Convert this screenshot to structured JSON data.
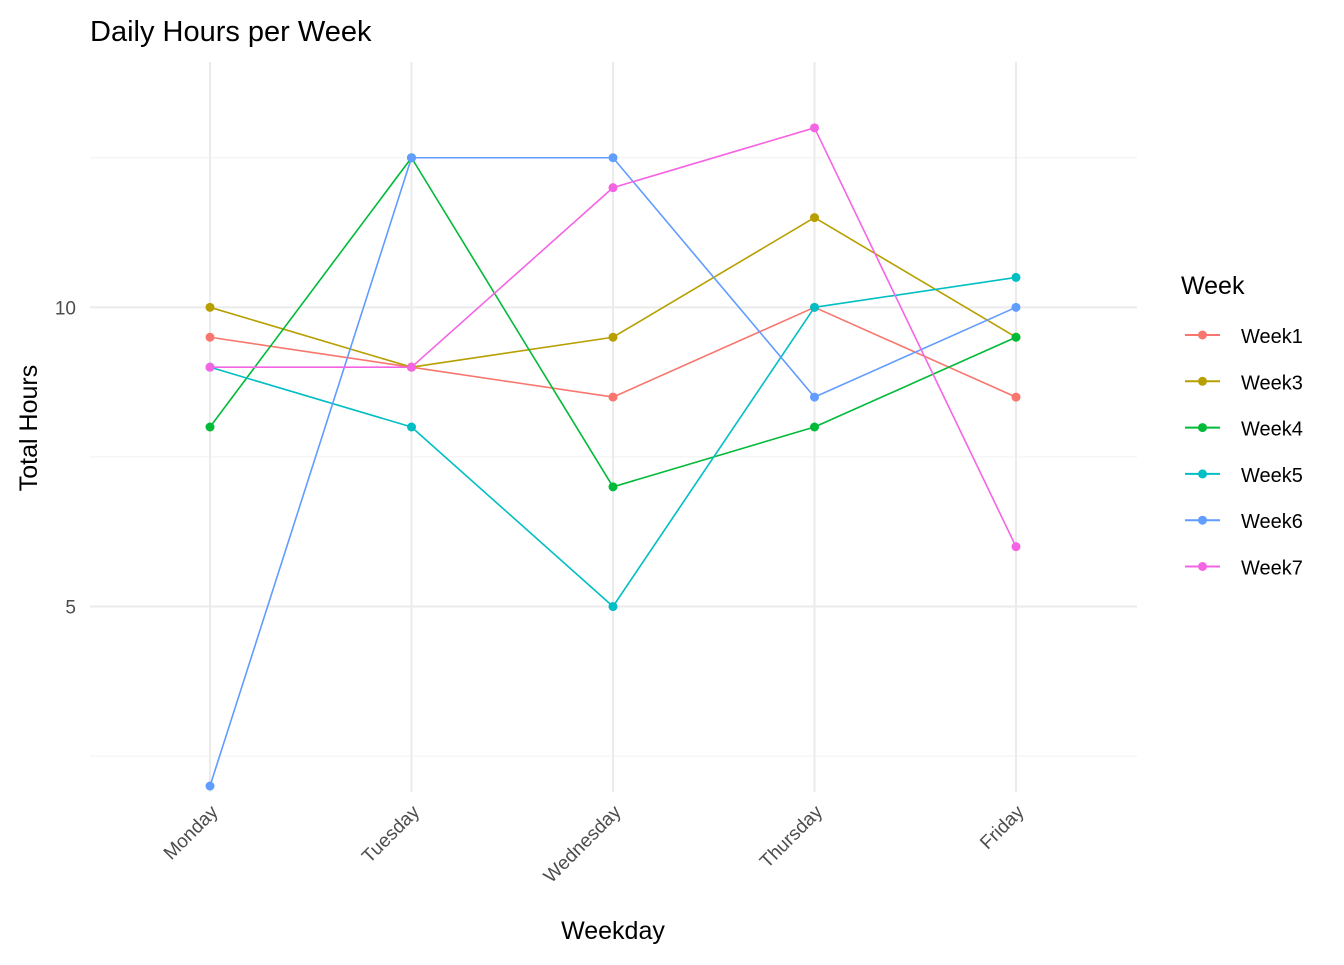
{
  "chart_data": {
    "type": "line",
    "title": "Daily Hours per Week",
    "xlabel": "Weekday",
    "ylabel": "Total Hours",
    "categories": [
      "Monday",
      "Tuesday",
      "Wednesday",
      "Thursday",
      "Friday"
    ],
    "ylim": [
      1.9,
      14.1
    ],
    "y_ticks": [
      5,
      10
    ],
    "y_minor_ticks": [
      2.5,
      7.5,
      12.5
    ],
    "grid": true,
    "legend": {
      "title": "Week",
      "position": "right"
    },
    "series": [
      {
        "name": "Week1",
        "color": "#F8766D",
        "values": [
          9.5,
          9,
          8.5,
          10,
          8.5
        ]
      },
      {
        "name": "Week3",
        "color": "#B79F00",
        "values": [
          10,
          9,
          9.5,
          11.5,
          9.5
        ]
      },
      {
        "name": "Week4",
        "color": "#00BA38",
        "values": [
          8,
          12.5,
          7,
          8,
          9.5
        ]
      },
      {
        "name": "Week5",
        "color": "#00BFC4",
        "values": [
          9,
          8,
          5,
          10,
          10.5
        ]
      },
      {
        "name": "Week6",
        "color": "#619CFF",
        "values": [
          2,
          12.5,
          12.5,
          8.5,
          10
        ]
      },
      {
        "name": "Week7",
        "color": "#F564E3",
        "values": [
          9,
          9,
          12,
          13,
          6
        ]
      }
    ]
  }
}
